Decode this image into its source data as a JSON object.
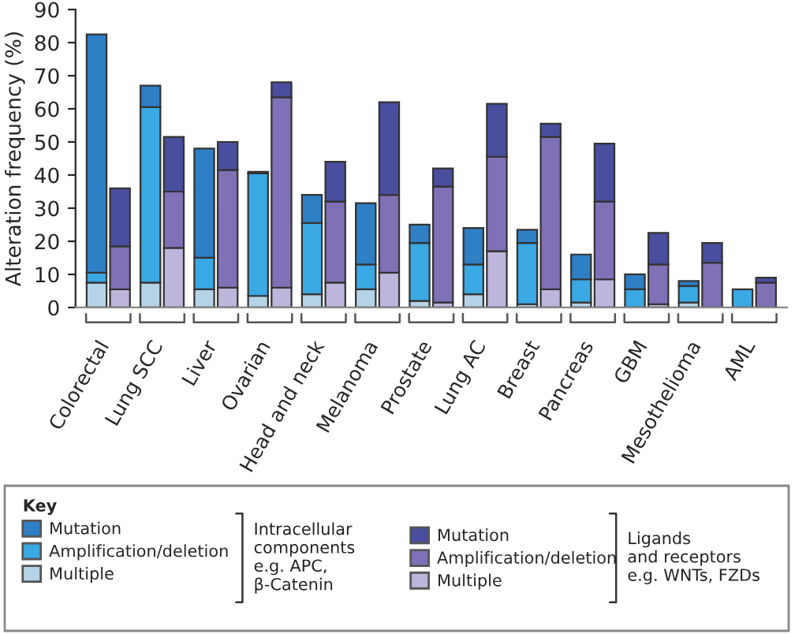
{
  "chart_data": {
    "type": "bar",
    "stacked": true,
    "ylabel": "Alteration frequency (%)",
    "legend_title": "Key",
    "legend": "bottom",
    "categories": [
      "Colorectal",
      null,
      "Lung SCC",
      null,
      "Liver",
      null,
      "Ovarian",
      null,
      "Head and neck",
      null,
      "Melanoma",
      null,
      "Prostate",
      null,
      "Lung AC",
      null,
      "Breast",
      null,
      "Pancreas",
      null,
      "GBM",
      null,
      "Mesothelioma",
      null,
      "AML",
      null
    ],
    "series": [
      {
        "name": "Multiple",
        "color": "#b5d3e7",
        "values": [
          7.5,
          null,
          7.5,
          null,
          5.5,
          null,
          3.5,
          null,
          4,
          null,
          5.5,
          null,
          2,
          null,
          4,
          null,
          1,
          null,
          1.5,
          null,
          null,
          null,
          1.5,
          null,
          null,
          null
        ]
      },
      {
        "name": "Amplification/deletion",
        "color": "#3aa8e3",
        "values": [
          3,
          null,
          53,
          null,
          9.5,
          null,
          37,
          null,
          21.5,
          null,
          7.5,
          null,
          17.5,
          null,
          9,
          null,
          18.5,
          null,
          7,
          null,
          5.5,
          null,
          5,
          null,
          5.5,
          null
        ]
      },
      {
        "name": "Mutation",
        "color": "#2e7fc4",
        "values": [
          72,
          null,
          6.5,
          null,
          33,
          null,
          0.5,
          null,
          8.5,
          null,
          18.5,
          null,
          5.5,
          null,
          11,
          null,
          4,
          null,
          7.5,
          null,
          4.5,
          null,
          1.5,
          null,
          null,
          null
        ]
      },
      {
        "name": "Multiple",
        "color": "#bdb5db",
        "values": [
          null,
          5.5,
          null,
          18,
          null,
          6,
          null,
          6,
          null,
          7.5,
          null,
          10.5,
          null,
          1.5,
          null,
          17,
          null,
          5.5,
          null,
          8.5,
          null,
          1,
          null,
          null,
          null,
          null
        ]
      },
      {
        "name": "Amplification/deletion",
        "color": "#8070b5",
        "values": [
          null,
          13,
          null,
          17,
          null,
          35.5,
          null,
          57.5,
          null,
          24.5,
          null,
          23.5,
          null,
          35,
          null,
          28.5,
          null,
          46,
          null,
          23.5,
          null,
          12,
          null,
          13.5,
          null,
          7.5
        ]
      },
      {
        "name": "Mutation",
        "color": "#4a4e9e",
        "values": [
          null,
          17.5,
          null,
          16.5,
          null,
          8.5,
          null,
          4.5,
          null,
          12,
          null,
          28,
          null,
          5.5,
          null,
          16,
          null,
          4,
          null,
          17.5,
          null,
          9.5,
          null,
          6,
          null,
          1.5
        ]
      }
    ],
    "ylim": [
      0,
      90
    ],
    "yticks": [
      0,
      10,
      20,
      30,
      40,
      50,
      60,
      70,
      80,
      90
    ],
    "grid": false,
    "annotations": [
      "Intracellular\ncomponents\ne.g. APC,\nβ-Catenin",
      "Ligands\nand receptors\ne.g. WNTs, FZDs"
    ]
  }
}
